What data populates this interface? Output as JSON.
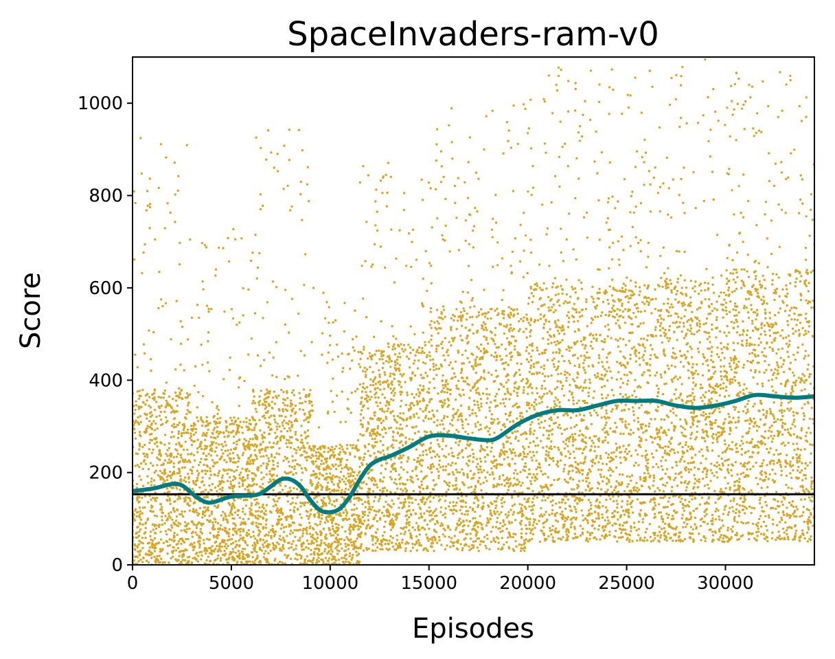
{
  "chart_data": {
    "type": "scatter",
    "title": "SpaceInvaders-ram-v0",
    "xlabel": "Episodes",
    "ylabel": "Score",
    "xlim": [
      0,
      34500
    ],
    "ylim": [
      0,
      1100
    ],
    "x_ticks": [
      0,
      5000,
      10000,
      15000,
      20000,
      25000,
      30000
    ],
    "y_ticks": [
      0,
      200,
      400,
      600,
      800,
      1000
    ],
    "grid": false,
    "legend": "none",
    "scatter_color": "#DAA520",
    "trend_color": "#007B7F",
    "baseline_color": "#000000",
    "series": [
      {
        "kind": "scatter",
        "points_description_values": {
          "per_episode_score_bands": [
            {
              "x_from": 0,
              "x_to": 3000,
              "typical_low": 0,
              "typical_high": 380,
              "max_outlier": 930
            },
            {
              "x_from": 3000,
              "x_to": 6000,
              "typical_low": 0,
              "typical_high": 320,
              "max_outlier": 740
            },
            {
              "x_from": 6000,
              "x_to": 9000,
              "typical_low": 0,
              "typical_high": 380,
              "max_outlier": 950
            },
            {
              "x_from": 9000,
              "x_to": 11500,
              "typical_low": 0,
              "typical_high": 260,
              "max_outlier": 600
            },
            {
              "x_from": 11500,
              "x_to": 15000,
              "typical_low": 30,
              "typical_high": 480,
              "max_outlier": 900
            },
            {
              "x_from": 15000,
              "x_to": 20000,
              "typical_low": 30,
              "typical_high": 560,
              "max_outlier": 1000
            },
            {
              "x_from": 20000,
              "x_to": 25000,
              "typical_low": 50,
              "typical_high": 610,
              "max_outlier": 1080
            },
            {
              "x_from": 25000,
              "x_to": 30000,
              "typical_low": 50,
              "typical_high": 620,
              "max_outlier": 1100
            },
            {
              "x_from": 30000,
              "x_to": 34500,
              "typical_low": 50,
              "typical_high": 640,
              "max_outlier": 1080
            }
          ]
        }
      },
      {
        "kind": "line",
        "x": [
          0,
          1000,
          2000,
          2500,
          3000,
          3500,
          4000,
          5000,
          6000,
          6500,
          7000,
          7500,
          8000,
          8500,
          9000,
          9500,
          10000,
          10500,
          11000,
          11500,
          12000,
          12500,
          13000,
          14000,
          15000,
          16000,
          17000,
          18000,
          18500,
          19500,
          20500,
          21500,
          22500,
          23500,
          24500,
          25500,
          26500,
          27500,
          28500,
          29500,
          30500,
          31500,
          32500,
          33500,
          34500
        ],
        "y": [
          160,
          165,
          175,
          172,
          155,
          140,
          135,
          148,
          150,
          155,
          170,
          185,
          185,
          170,
          140,
          118,
          114,
          122,
          148,
          185,
          215,
          228,
          235,
          255,
          278,
          280,
          274,
          270,
          276,
          305,
          325,
          335,
          335,
          345,
          355,
          355,
          355,
          345,
          340,
          345,
          355,
          368,
          365,
          362,
          365
        ]
      },
      {
        "kind": "hline",
        "y": 153
      }
    ]
  }
}
